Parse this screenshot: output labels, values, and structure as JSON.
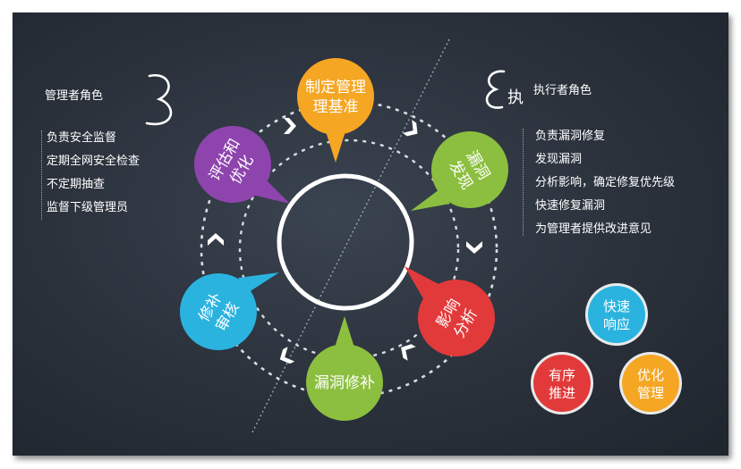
{
  "manager": {
    "title": "管理者角色",
    "duties": [
      "负责安全监督",
      "定期全网安全检查",
      "不定期抽查",
      "监督下级管理员"
    ]
  },
  "executor": {
    "title": "执行者角色",
    "icon_char": "执",
    "duties": [
      "负责漏洞修复",
      "发现漏洞",
      "分析影响，确定修复优先级",
      "快速修复漏洞",
      "为管理者提供改进意见"
    ]
  },
  "cycle": {
    "steps": [
      {
        "lines": [
          "制定管理",
          "理基准"
        ],
        "color": "#f5a623"
      },
      {
        "lines": [
          "漏洞",
          "发现"
        ],
        "color": "#8cbf3f"
      },
      {
        "lines": [
          "影响",
          "分析"
        ],
        "color": "#e23a3a"
      },
      {
        "lines": [
          "漏洞修补"
        ],
        "color": "#8cbf3f"
      },
      {
        "lines": [
          "修补",
          "审核"
        ],
        "color": "#2bb3e0"
      },
      {
        "lines": [
          "评估和",
          "优化"
        ],
        "color": "#8e44ad"
      }
    ]
  },
  "principles": [
    {
      "lines": [
        "快速",
        "响应"
      ],
      "color": "#2bb3e0"
    },
    {
      "lines": [
        "有序",
        "推进"
      ],
      "color": "#e23a3a"
    },
    {
      "lines": [
        "优化",
        "管理"
      ],
      "color": "#f5a623"
    }
  ]
}
